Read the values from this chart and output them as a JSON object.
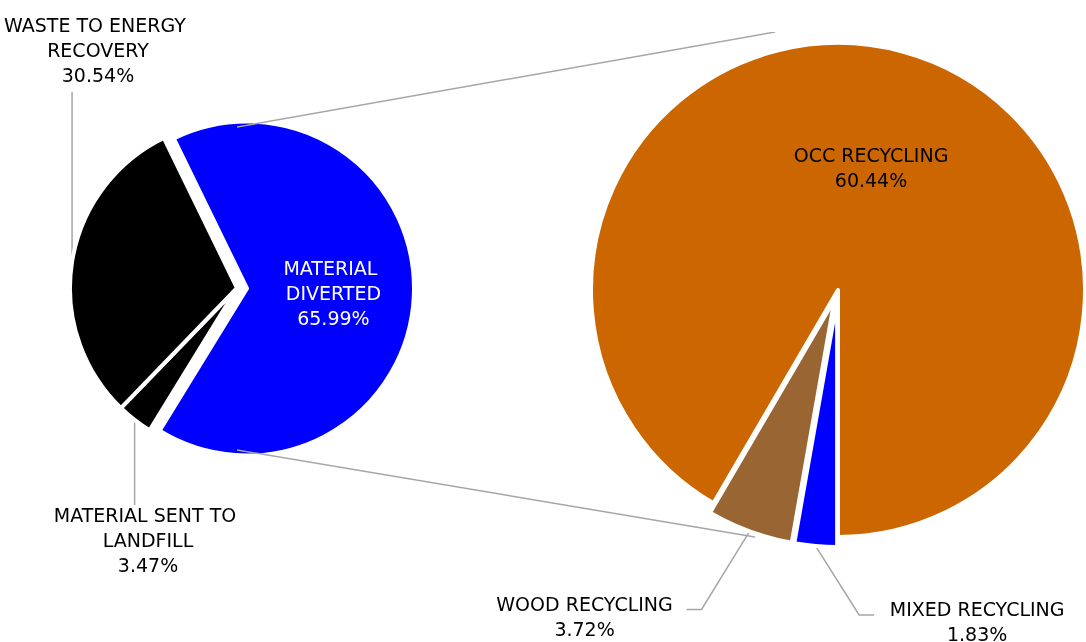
{
  "chart_data": [
    {
      "type": "pie",
      "categories": [
        "MATERIAL DIVERTED",
        "MATERIAL SENT TO LANDFILL",
        "WASTE TO ENERGY RECOVERY"
      ],
      "values": [
        65.99,
        3.47,
        30.54
      ],
      "value_labels": [
        "65.99%",
        "3.47%",
        "30.54%"
      ],
      "data_labels": true,
      "colors": [
        "#0000ff",
        "#000000",
        "#000000"
      ]
    },
    {
      "type": "pie",
      "categories": [
        "OCC RECYCLING",
        "WOOD RECYCLING",
        "MIXED RECYCLING"
      ],
      "values": [
        60.44,
        3.72,
        1.83
      ],
      "value_labels": [
        "60.44%",
        "3.72%",
        "1.83%"
      ],
      "data_labels": true,
      "colors": [
        "#cc6600",
        "#996633",
        "#0000ff"
      ]
    }
  ]
}
